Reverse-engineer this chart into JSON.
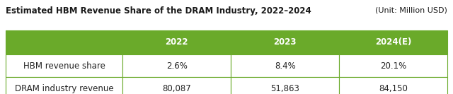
{
  "title": "Estimated HBM Revenue Share of the DRAM Industry, 2022–2024",
  "unit_label": "(Unit: Million USD)",
  "header_years": [
    "2022",
    "2023",
    "2024(E)"
  ],
  "rows": [
    {
      "label": "HBM revenue share",
      "values": [
        "2.6%",
        "8.4%",
        "20.1%"
      ]
    },
    {
      "label": "DRAM industry revenue",
      "values": [
        "80,087",
        "51,863",
        "84,150"
      ]
    }
  ],
  "header_bg": "#6aaa2a",
  "header_text_color": "#ffffff",
  "row_bg": "#ffffff",
  "row_text_color": "#222222",
  "border_color": "#6aaa2a",
  "title_color": "#1a1a1a",
  "title_fontsize": 8.5,
  "unit_fontsize": 8.0,
  "cell_fontsize": 8.5,
  "fig_bg": "#ffffff"
}
